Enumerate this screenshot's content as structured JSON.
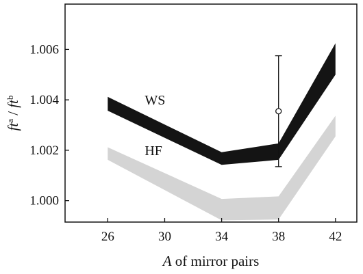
{
  "chart_data": {
    "type": "area",
    "title": "",
    "xlabel": {
      "italic": "A",
      "rest": " of mirror pairs"
    },
    "ylabel": {
      "p1": "ft",
      "sup1": "a",
      "mid": " / ",
      "p2": "ft",
      "sup2": "b"
    },
    "x_ticks": [
      26,
      30,
      34,
      38,
      42
    ],
    "y_ticks": [
      "1.000",
      "1.002",
      "1.004",
      "1.006"
    ],
    "xlim": [
      23,
      43.5
    ],
    "ylim": [
      0.99915,
      1.0078
    ],
    "grid": false,
    "series": [
      {
        "name": "WS",
        "color": "#141414",
        "x": [
          26,
          34,
          38,
          42
        ],
        "lower": [
          1.00357,
          1.00142,
          1.00162,
          1.005
        ],
        "upper": [
          1.00412,
          1.00192,
          1.00227,
          1.00625
        ]
      },
      {
        "name": "HF",
        "color": "#d4d4d4",
        "x": [
          26,
          34,
          38,
          42
        ],
        "lower": [
          1.00162,
          0.99922,
          0.99925,
          1.00255
        ],
        "upper": [
          1.00212,
          1.00007,
          1.00017,
          1.00337
        ]
      }
    ],
    "measurement": {
      "x": 38,
      "y": 1.00355,
      "err_low": 1.00135,
      "err_high": 1.00575
    }
  }
}
